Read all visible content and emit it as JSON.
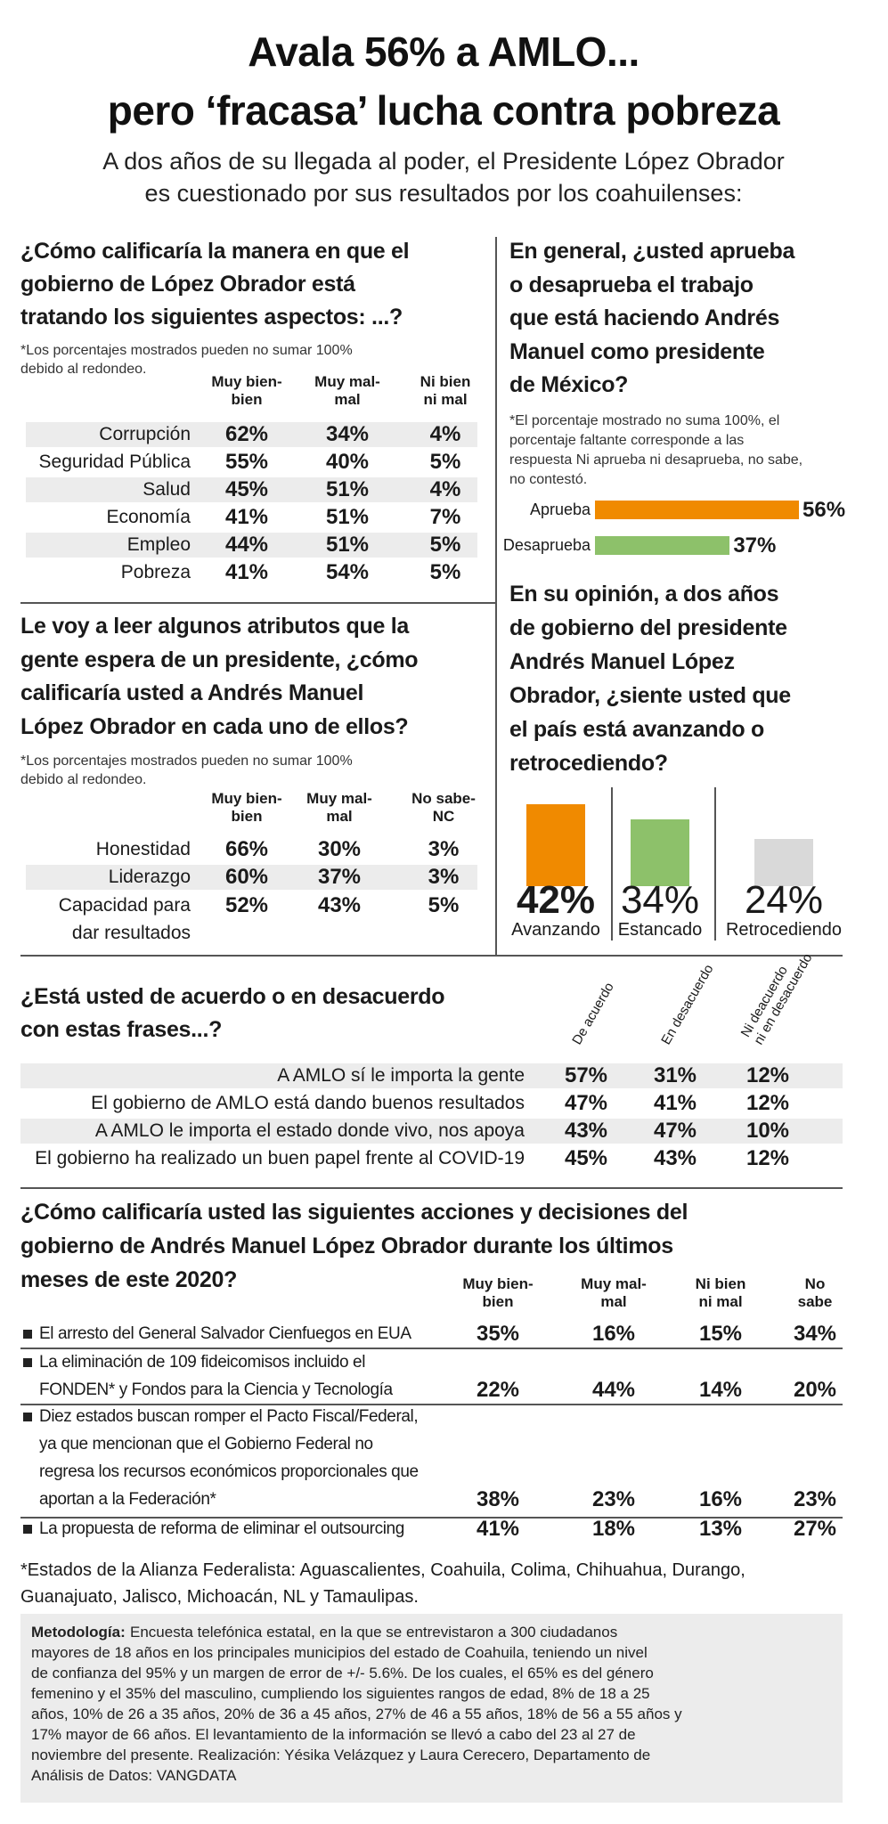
{
  "header": {
    "title": [
      "Avala 56% a AMLO...",
      "pero ‘fracasa’ lucha contra pobreza"
    ],
    "subtitle": [
      "A dos años de su llegada al poder, el Presidente López Obrador",
      "es cuestionado por sus resultados por los coahuilenses:"
    ]
  },
  "aspects": {
    "question": [
      "¿Cómo calificaría la manera en que el",
      "gobierno de López Obrador está",
      "tratando los siguientes aspectos: ...?"
    ],
    "note": [
      "*Los porcentajes mostrados pueden no sumar 100%",
      "debido al redondeo."
    ],
    "columns": [
      [
        "Muy bien-",
        "bien"
      ],
      [
        "Muy mal-",
        "mal"
      ],
      [
        "Ni bien",
        "ni mal"
      ]
    ],
    "rows": [
      {
        "label": [
          "Corrupción"
        ],
        "values": [
          "62%",
          "34%",
          "4%"
        ]
      },
      {
        "label": [
          "Seguridad Pública"
        ],
        "values": [
          "55%",
          "40%",
          "5%"
        ]
      },
      {
        "label": [
          "Salud"
        ],
        "values": [
          "45%",
          "51%",
          "4%"
        ]
      },
      {
        "label": [
          "Economía"
        ],
        "values": [
          "41%",
          "51%",
          "7%"
        ]
      },
      {
        "label": [
          "Empleo"
        ],
        "values": [
          "44%",
          "51%",
          "5%"
        ]
      },
      {
        "label": [
          "Pobreza"
        ],
        "values": [
          "41%",
          "54%",
          "5%"
        ]
      }
    ]
  },
  "attributes": {
    "question": [
      "Le voy a leer algunos atributos que la",
      "gente espera de un presidente, ¿cómo",
      "calificaría usted a Andrés Manuel",
      "López Obrador en cada uno de ellos?"
    ],
    "note": [
      "*Los porcentajes mostrados pueden no sumar 100%",
      "debido al redondeo."
    ],
    "columns": [
      [
        "Muy bien-",
        "bien"
      ],
      [
        "Muy mal-",
        "mal"
      ],
      [
        "No sabe-",
        "NC"
      ]
    ],
    "rows": [
      {
        "label": [
          "Honestidad"
        ],
        "values": [
          "66%",
          "30%",
          "3%"
        ]
      },
      {
        "label": [
          "Liderazgo"
        ],
        "values": [
          "60%",
          "37%",
          "3%"
        ]
      },
      {
        "label": [
          "Capacidad para",
          "dar resultados"
        ],
        "values": [
          "52%",
          "43%",
          "5%"
        ]
      }
    ]
  },
  "approval": {
    "question": [
      "En general, ¿usted aprueba",
      "o desaprueba el trabajo",
      "que está haciendo Andrés",
      "Manuel como presidente",
      "de México?"
    ],
    "note": [
      "*El porcentaje mostrado no suma 100%, el",
      "porcentaje faltante corresponde a las",
      "respuesta Ni aprueba ni desaprueba, no sabe,",
      "no contestó."
    ],
    "categories": [
      "Aprueba",
      "Desaprueba"
    ],
    "values": [
      56,
      37
    ],
    "value_labels": [
      "56%",
      "37%"
    ],
    "colors": [
      "#f08a00",
      "#8dc16a"
    ]
  },
  "direction": {
    "question": [
      "En su opinión, a dos años",
      "de gobierno del presidente",
      "Andrés Manuel López",
      "Obrador, ¿siente usted que",
      "el país está avanzando o",
      "retrocediendo?"
    ],
    "categories": [
      "Avanzando",
      "Estancado",
      "Retrocediendo"
    ],
    "values": [
      42,
      34,
      24
    ],
    "value_labels": [
      "42%",
      "34%",
      "24%"
    ],
    "colors": [
      "#f08a00",
      "#8dc16a",
      "#d9d9d9"
    ]
  },
  "agreement": {
    "question": [
      "¿Está usted de acuerdo o en desacuerdo",
      "con estas frases...?"
    ],
    "columns": [
      [
        "De acuerdo"
      ],
      [
        "En desacuerdo"
      ],
      [
        "Ni deacuerdo",
        "ni en desacuerdo"
      ]
    ],
    "rows": [
      {
        "label": [
          "A AMLO sí le importa la gente"
        ],
        "values": [
          "57%",
          "31%",
          "12%"
        ]
      },
      {
        "label": [
          "El gobierno de AMLO está dando buenos resultados"
        ],
        "values": [
          "47%",
          "41%",
          "12%"
        ]
      },
      {
        "label": [
          "A AMLO le importa el estado donde vivo, nos apoya"
        ],
        "values": [
          "43%",
          "47%",
          "10%"
        ]
      },
      {
        "label": [
          "El gobierno ha realizado un buen papel frente al COVID-19"
        ],
        "values": [
          "45%",
          "43%",
          "12%"
        ]
      }
    ]
  },
  "actions": {
    "question": [
      "¿Cómo calificaría usted las siguientes acciones y decisiones del",
      "gobierno de Andrés Manuel López Obrador durante los últimos",
      "meses de este 2020?"
    ],
    "columns": [
      [
        "Muy bien-",
        "bien"
      ],
      [
        "Muy mal-",
        "mal"
      ],
      [
        "Ni bien",
        "ni mal"
      ],
      [
        "No",
        "sabe"
      ]
    ],
    "rows": [
      {
        "label": [
          "El arresto del General Salvador Cienfuegos en EUA"
        ],
        "values": [
          "35%",
          "16%",
          "15%",
          "34%"
        ]
      },
      {
        "label": [
          "La eliminación de 109 fideicomisos incluido el",
          "FONDEN* y Fondos para la Ciencia y Tecnología"
        ],
        "values": [
          "22%",
          "44%",
          "14%",
          "20%"
        ]
      },
      {
        "label": [
          "Diez estados buscan romper el Pacto Fiscal/Federal,",
          "ya que mencionan que el Gobierno Federal no",
          "regresa los recursos económicos proporcionales que",
          "aportan a la Federación*"
        ],
        "values": [
          "38%",
          "23%",
          "16%",
          "23%"
        ]
      },
      {
        "label": [
          "La propuesta de reforma de eliminar el outsourcing"
        ],
        "values": [
          "41%",
          "18%",
          "13%",
          "27%"
        ]
      }
    ]
  },
  "footnote": [
    "*Estados de la Alianza Federalista: Aguascalientes, Coahuila, Colima, Chihuahua, Durango,",
    "Guanajuato, Jalisco, Michoacán, NL y Tamaulipas."
  ],
  "methodology": {
    "label": "Metodología:",
    "lines": [
      "Encuesta telefónica estatal, en la que se entrevistaron a 300 ciudadanos",
      "mayores de 18 años en los principales municipios del estado de Coahuila, teniendo un nivel",
      "de confianza del 95% y un margen de error de +/- 5.6%. De los cuales, el 65% es del género",
      "femenino y el 35% del masculino, cumpliendo los siguientes rangos de edad, 8% de 18 a 25",
      "años, 10% de 26 a 35 años, 20% de 36 a 45 años, 27% de 46 a 55 años, 18% de 56 a 55 años y",
      "17% mayor de 66 años. El levantamiento de la información se llevó a cabo del 23 al 27 de",
      "noviembre del presente. Realización: Yésika Velázquez y Laura Cerecero, Departamento de",
      "Análisis de Datos: VANGDATA"
    ]
  }
}
